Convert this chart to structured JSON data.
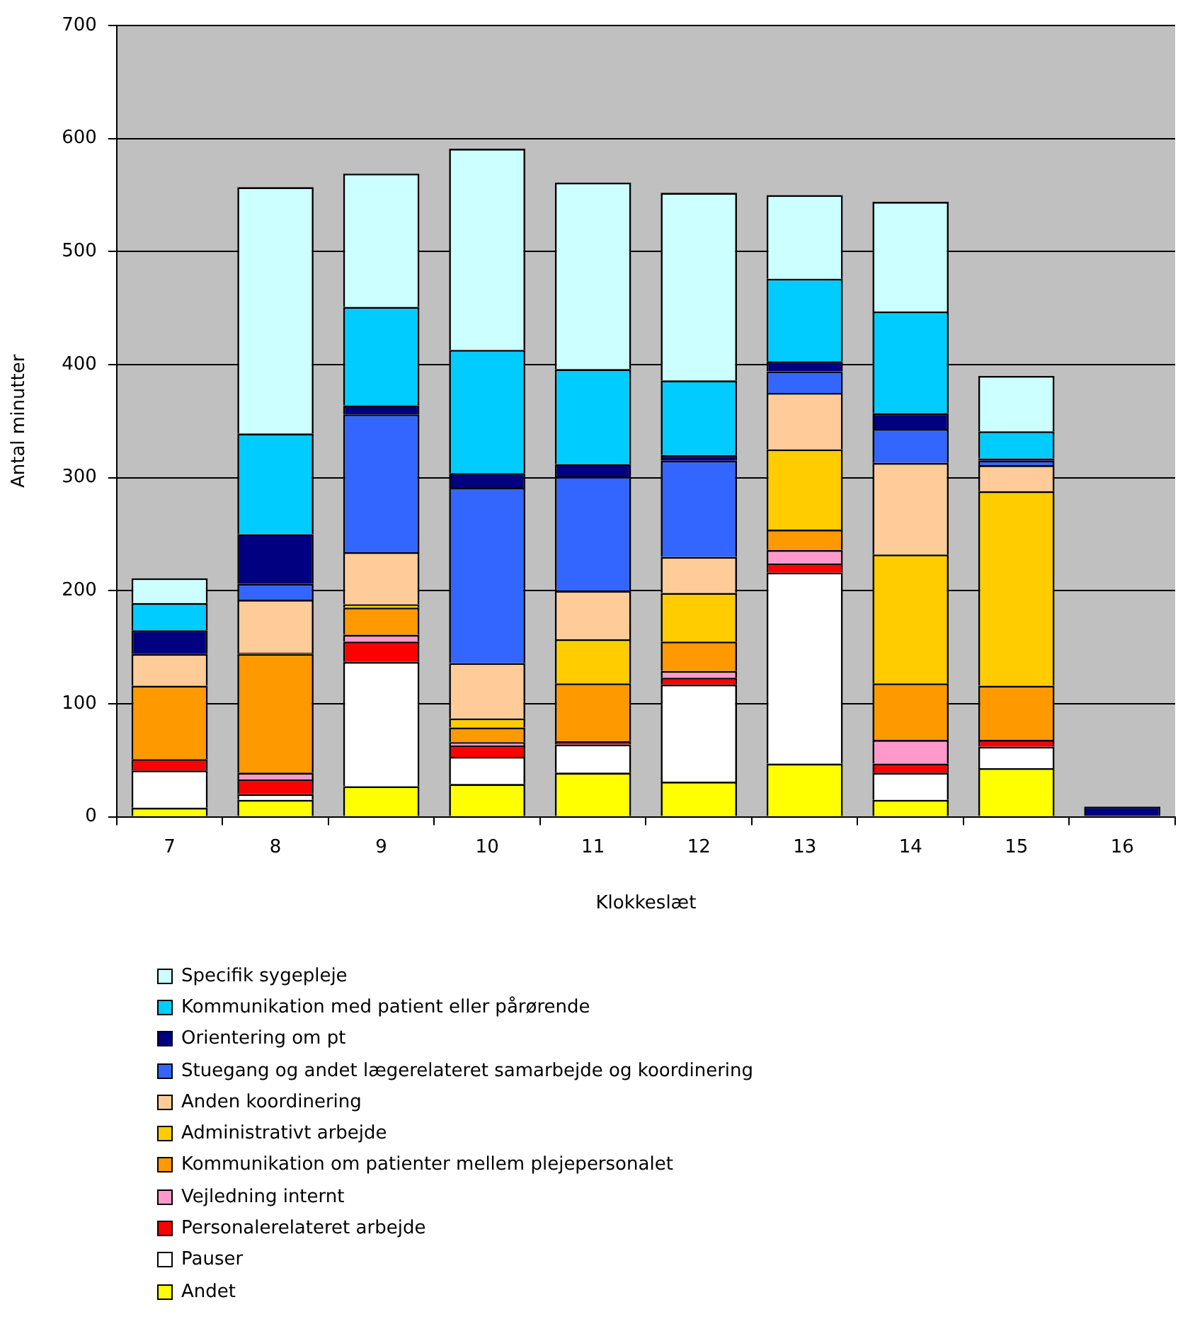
{
  "chart_data": {
    "type": "bar",
    "stacked": true,
    "xlabel": "Klokkeslæt",
    "ylabel": "Antal minutter",
    "categories": [
      "7",
      "8",
      "9",
      "10",
      "11",
      "12",
      "13",
      "14",
      "15",
      "16"
    ],
    "ylim": [
      0,
      700
    ],
    "yticks": [
      0,
      100,
      200,
      300,
      400,
      500,
      600,
      700
    ],
    "grid": "y",
    "legend": "bottom",
    "series": [
      {
        "name": "Andet",
        "color": "#ffff00",
        "values": [
          8,
          15,
          27,
          29,
          39,
          31,
          47,
          15,
          43,
          0
        ]
      },
      {
        "name": "Pauser",
        "color": "#ffffff",
        "values": [
          33,
          5,
          110,
          24,
          25,
          86,
          169,
          24,
          19,
          null
        ]
      },
      {
        "name": "Personalerelateret arbejde",
        "color": "#ff0000",
        "values": [
          10,
          13,
          18,
          10,
          3,
          6,
          8,
          8,
          6,
          0
        ]
      },
      {
        "name": "Vejledning internt",
        "color": "#ff99cc",
        "values": [
          0,
          6,
          6,
          3,
          0,
          6,
          12,
          21,
          0,
          0
        ]
      },
      {
        "name": "Kommunikation om patienter mellem plejepersonalet",
        "color": "#ff9900",
        "values": [
          65,
          105,
          24,
          13,
          51,
          26,
          18,
          50,
          48,
          0
        ]
      },
      {
        "name": "Administrativt arbejde",
        "color": "#ffcc00",
        "values": [
          0,
          1,
          3,
          8,
          39,
          43,
          71,
          114,
          172,
          0
        ]
      },
      {
        "name": "Anden koordinering",
        "color": "#ffcc99",
        "values": [
          28,
          47,
          46,
          49,
          43,
          32,
          50,
          81,
          23,
          0
        ]
      },
      {
        "name": "Stuegang og andet lægerelateret samarbejde og koordinering",
        "color": "#3366ff",
        "values": [
          0,
          14,
          122,
          155,
          101,
          85,
          19,
          30,
          4,
          0
        ]
      },
      {
        "name": "Orientering om pt",
        "color": "#000080",
        "values": [
          21,
          44,
          8,
          13,
          11,
          5,
          9,
          14,
          2,
          9
        ]
      },
      {
        "name": "Kommunikation med patient eller pårørende",
        "color": "#00ccff",
        "values": [
          24,
          89,
          87,
          109,
          84,
          66,
          73,
          90,
          24,
          0
        ]
      },
      {
        "name": "Specifik sygepleje",
        "color": "#ccffff",
        "values": [
          22,
          218,
          118,
          178,
          165,
          166,
          74,
          97,
          49,
          0
        ]
      }
    ]
  }
}
